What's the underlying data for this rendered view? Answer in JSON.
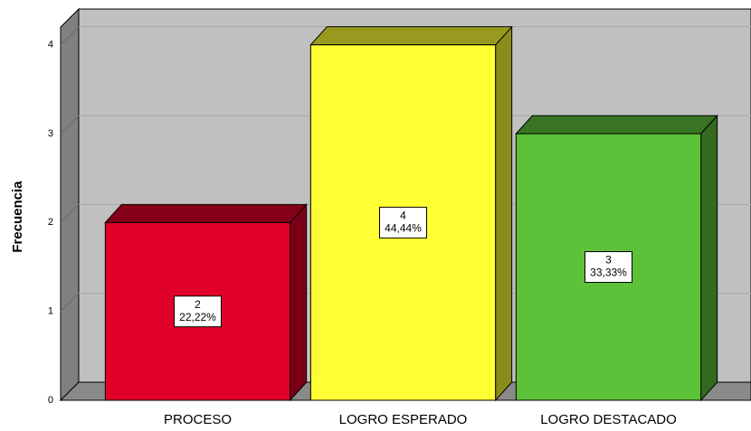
{
  "chart_data": {
    "type": "bar3d",
    "y_label": "Frecuencia",
    "categories": [
      "PROCESO",
      "LOGRO ESPERADO",
      "LOGRO DESTACADO"
    ],
    "values": [
      2,
      4,
      3
    ],
    "percents": [
      22.22,
      44.44,
      33.33
    ],
    "percent_labels": [
      "22,22%",
      "44,44%",
      "33,33%"
    ],
    "colors": [
      "#e0002a",
      "#ffff33",
      "#5ec13a"
    ],
    "ylim": [
      0,
      4.2
    ],
    "yticks": [
      0,
      1,
      2,
      3,
      4
    ],
    "grid": true
  }
}
